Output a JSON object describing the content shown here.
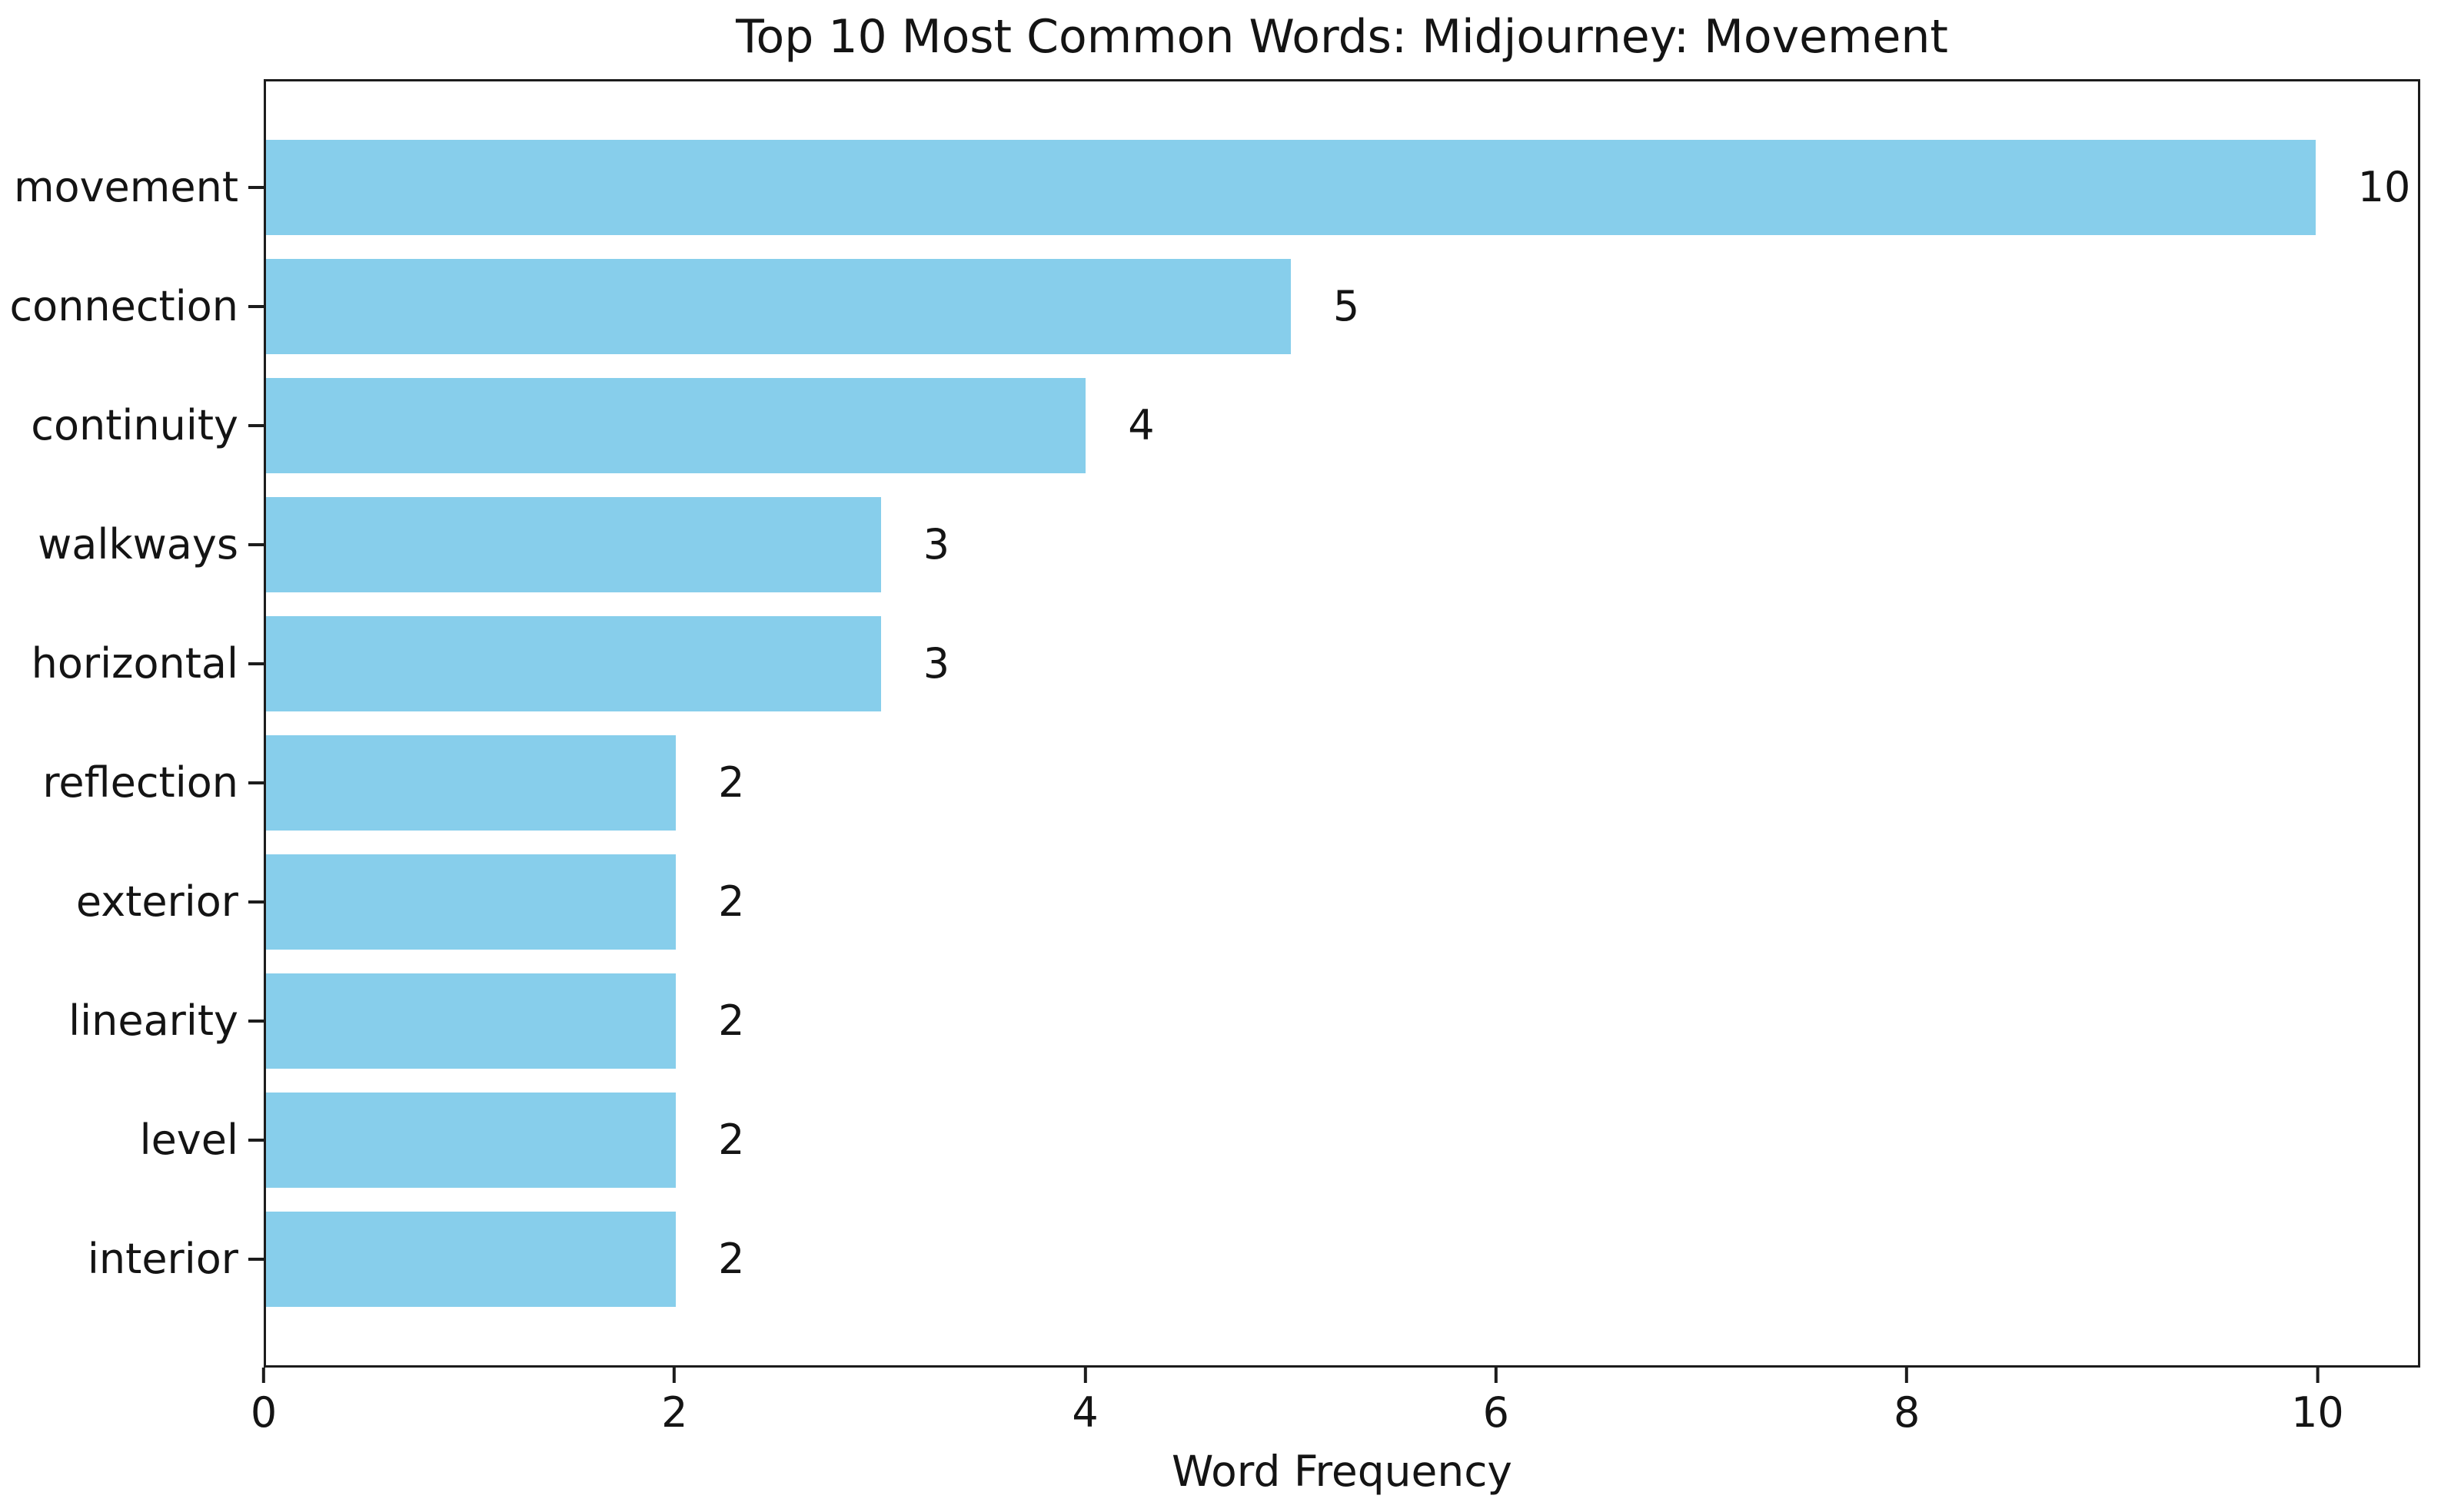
{
  "chart_data": {
    "type": "bar",
    "orientation": "horizontal",
    "title": "Top 10 Most Common Words: Midjourney: Movement",
    "xlabel": "Word Frequency",
    "ylabel": "",
    "categories": [
      "movement",
      "connection",
      "continuity",
      "walkways",
      "horizontal",
      "reflection",
      "exterior",
      "linearity",
      "level",
      "interior"
    ],
    "values": [
      10,
      5,
      4,
      3,
      3,
      2,
      2,
      2,
      2,
      2
    ],
    "bar_labels": [
      "10",
      "5",
      "4",
      "3",
      "3",
      "2",
      "2",
      "2",
      "2",
      "2"
    ],
    "x_ticks": [
      0,
      2,
      4,
      6,
      8,
      10
    ],
    "xlim": [
      0,
      10.5
    ],
    "grid": false,
    "legend_position": "none",
    "colors": {
      "bar_fill": "#87CEEB",
      "background": "#ffffff",
      "frame": "#1c1c1c",
      "text": "#141414"
    }
  }
}
